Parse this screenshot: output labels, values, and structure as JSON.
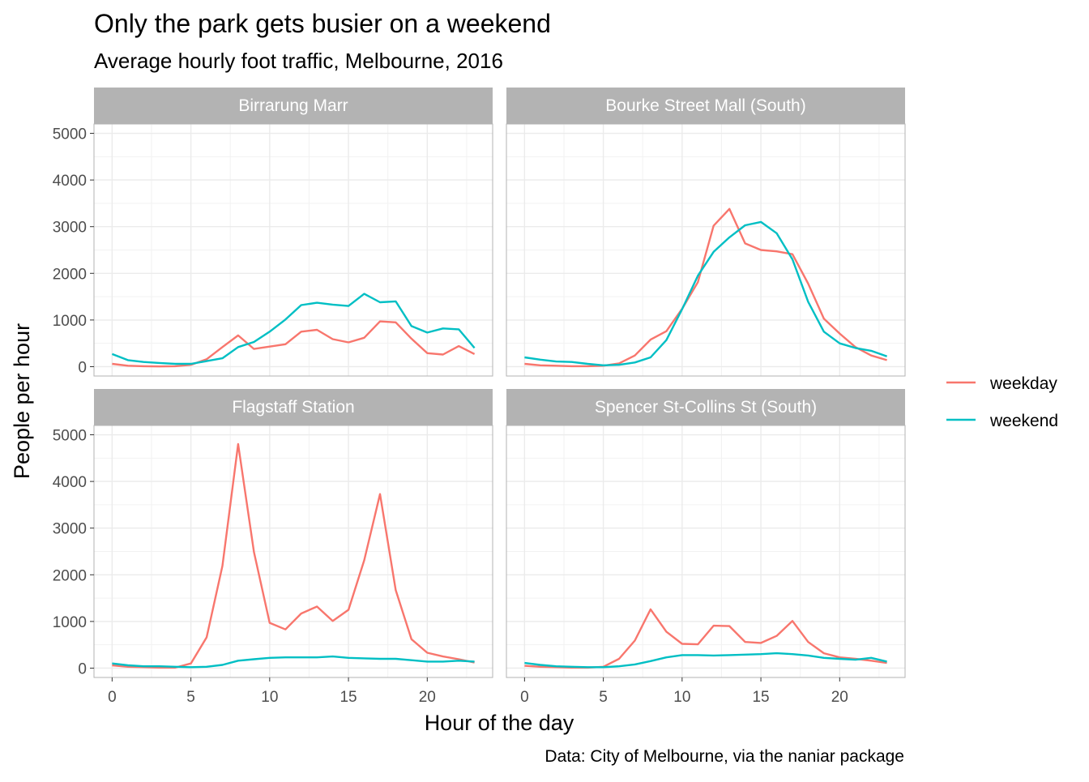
{
  "chart_data": {
    "type": "line",
    "title": "Only the park gets busier on a weekend",
    "subtitle": "Average hourly foot traffic, Melbourne, 2016",
    "caption": "Data: City of Melbourne, via the naniar package",
    "xlabel": "Hour of the day",
    "ylabel": "People per hour",
    "xlim": [
      -1.15,
      24.15
    ],
    "ylim": [
      -200,
      5200
    ],
    "x_ticks": [
      0,
      5,
      10,
      15,
      20
    ],
    "y_ticks": [
      0,
      1000,
      2000,
      3000,
      4000,
      5000
    ],
    "grid": true,
    "legend_position": "right",
    "colors": {
      "weekday": "#f8766d",
      "weekend": "#00bfc4",
      "strip": "#b3b3b3",
      "grid": "#ebebeb",
      "border": "#b3b3b3"
    },
    "x": [
      0,
      1,
      2,
      3,
      4,
      5,
      6,
      7,
      8,
      9,
      10,
      11,
      12,
      13,
      14,
      15,
      16,
      17,
      18,
      19,
      20,
      21,
      22,
      23
    ],
    "legend": [
      {
        "name": "weekday",
        "color": "#f8766d"
      },
      {
        "name": "weekend",
        "color": "#00bfc4"
      }
    ],
    "panels": [
      {
        "name": "Birrarung Marr",
        "series": [
          {
            "name": "weekday",
            "values": [
              60,
              20,
              10,
              5,
              10,
              40,
              160,
              420,
              670,
              380,
              430,
              480,
              750,
              790,
              590,
              520,
              620,
              970,
              950,
              600,
              290,
              260,
              440,
              270
            ]
          },
          {
            "name": "weekend",
            "values": [
              270,
              140,
              100,
              80,
              60,
              60,
              120,
              180,
              420,
              530,
              750,
              1010,
              1320,
              1370,
              1330,
              1300,
              1560,
              1380,
              1400,
              870,
              730,
              820,
              800,
              400
            ]
          }
        ]
      },
      {
        "name": "Bourke Street Mall (South)",
        "series": [
          {
            "name": "weekday",
            "values": [
              60,
              30,
              20,
              10,
              10,
              20,
              70,
              240,
              580,
              760,
              1240,
              1810,
              3020,
              3380,
              2640,
              2500,
              2470,
              2410,
              1780,
              1030,
              710,
              420,
              240,
              140
            ]
          },
          {
            "name": "weekend",
            "values": [
              200,
              150,
              110,
              100,
              60,
              30,
              40,
              90,
              200,
              570,
              1230,
              1950,
              2460,
              2770,
              3030,
              3100,
              2860,
              2300,
              1390,
              750,
              500,
              400,
              340,
              220
            ]
          }
        ]
      },
      {
        "name": "Flagstaff Station",
        "series": [
          {
            "name": "weekday",
            "values": [
              60,
              30,
              20,
              10,
              10,
              100,
              660,
              2190,
              4800,
              2490,
              970,
              830,
              1170,
              1320,
              1010,
              1250,
              2310,
              3730,
              1670,
              620,
              330,
              250,
              190,
              120
            ]
          },
          {
            "name": "weekend",
            "values": [
              100,
              60,
              40,
              40,
              30,
              20,
              30,
              70,
              160,
              190,
              220,
              230,
              230,
              230,
              250,
              220,
              210,
              200,
              200,
              170,
              140,
              140,
              160,
              140
            ]
          }
        ]
      },
      {
        "name": "Spencer St-Collins St (South)",
        "series": [
          {
            "name": "weekday",
            "values": [
              50,
              30,
              20,
              10,
              10,
              30,
              200,
              590,
              1260,
              780,
              520,
              510,
              910,
              900,
              560,
              540,
              690,
              1010,
              560,
              320,
              230,
              200,
              160,
              110
            ]
          },
          {
            "name": "weekend",
            "values": [
              110,
              70,
              40,
              30,
              20,
              20,
              40,
              80,
              150,
              230,
              280,
              280,
              270,
              280,
              290,
              300,
              320,
              300,
              270,
              220,
              200,
              180,
              220,
              140
            ]
          }
        ]
      }
    ]
  }
}
